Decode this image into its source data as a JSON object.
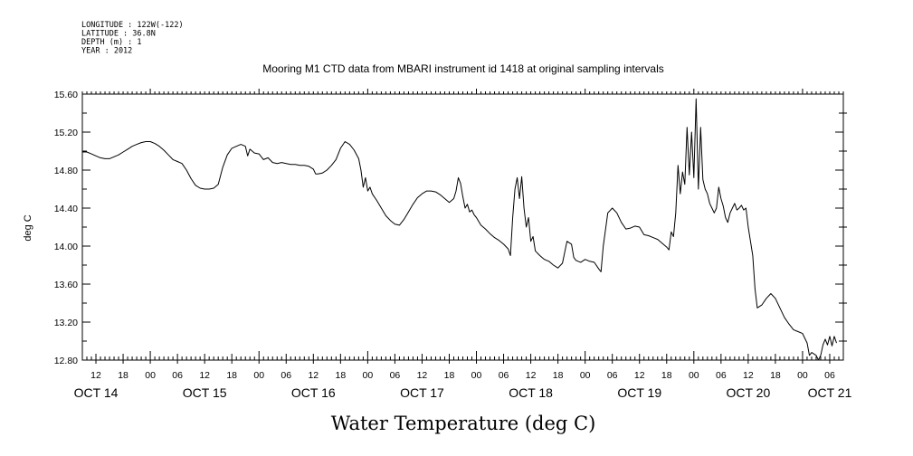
{
  "header": {
    "meta_lines": [
      "LONGITUDE : 122W(-122)",
      "LATITUDE : 36.8N",
      "DEPTH (m) : 1",
      "YEAR : 2012"
    ]
  },
  "chart_data": {
    "type": "line",
    "title": "Mooring M1 CTD data from MBARI instrument id 1418 at original sampling intervals",
    "xlabel": "Water Temperature (deg C)",
    "ylabel": "deg C",
    "ylim": [
      12.8,
      15.6
    ],
    "yticks": [
      "12.80",
      "13.20",
      "13.60",
      "14.00",
      "14.40",
      "14.80",
      "15.20",
      "15.60"
    ],
    "xlim": [
      -15,
      153
    ],
    "x_unit": "hours since OCT 14 00:00",
    "hour_ticks": [
      {
        "x": -12,
        "label": "12"
      },
      {
        "x": -6,
        "label": "18"
      },
      {
        "x": 0,
        "label": "00"
      },
      {
        "x": 6,
        "label": "06"
      },
      {
        "x": 12,
        "label": "12"
      },
      {
        "x": 18,
        "label": "18"
      },
      {
        "x": 24,
        "label": "00"
      },
      {
        "x": 30,
        "label": "06"
      },
      {
        "x": 36,
        "label": "12"
      },
      {
        "x": 42,
        "label": "18"
      },
      {
        "x": 48,
        "label": "00"
      },
      {
        "x": 54,
        "label": "06"
      },
      {
        "x": 60,
        "label": "12"
      },
      {
        "x": 66,
        "label": "18"
      },
      {
        "x": 72,
        "label": "00"
      },
      {
        "x": 78,
        "label": "06"
      },
      {
        "x": 84,
        "label": "12"
      },
      {
        "x": 90,
        "label": "18"
      },
      {
        "x": 96,
        "label": "00"
      },
      {
        "x": 102,
        "label": "06"
      },
      {
        "x": 108,
        "label": "12"
      },
      {
        "x": 114,
        "label": "18"
      },
      {
        "x": 120,
        "label": "00"
      },
      {
        "x": 126,
        "label": "06"
      },
      {
        "x": 132,
        "label": "12"
      },
      {
        "x": 138,
        "label": "18"
      },
      {
        "x": 144,
        "label": "00"
      },
      {
        "x": 150,
        "label": "06"
      }
    ],
    "day_labels": [
      {
        "x": -12,
        "label": "OCT 14"
      },
      {
        "x": 12,
        "label": "OCT 15"
      },
      {
        "x": 36,
        "label": "OCT 16"
      },
      {
        "x": 60,
        "label": "OCT 17"
      },
      {
        "x": 84,
        "label": "OCT 18"
      },
      {
        "x": 108,
        "label": "OCT 19"
      },
      {
        "x": 132,
        "label": "OCT 20"
      },
      {
        "x": 150,
        "label": "OCT 21"
      }
    ],
    "series": [
      {
        "color": "#000000",
        "points": [
          [
            -15,
            14.99
          ],
          [
            -14,
            14.99
          ],
          [
            -13,
            14.97
          ],
          [
            -12,
            14.95
          ],
          [
            -11,
            14.93
          ],
          [
            -10,
            14.92
          ],
          [
            -9,
            14.92
          ],
          [
            -8,
            14.94
          ],
          [
            -7,
            14.96
          ],
          [
            -6,
            14.99
          ],
          [
            -5,
            15.02
          ],
          [
            -4,
            15.05
          ],
          [
            -3,
            15.07
          ],
          [
            -2,
            15.09
          ],
          [
            -1,
            15.1
          ],
          [
            0,
            15.1
          ],
          [
            1,
            15.08
          ],
          [
            2,
            15.05
          ],
          [
            3,
            15.01
          ],
          [
            4,
            14.96
          ],
          [
            5,
            14.91
          ],
          [
            6,
            14.89
          ],
          [
            7,
            14.87
          ],
          [
            8,
            14.8
          ],
          [
            9,
            14.71
          ],
          [
            10,
            14.64
          ],
          [
            11,
            14.61
          ],
          [
            12,
            14.6
          ],
          [
            13,
            14.6
          ],
          [
            14,
            14.61
          ],
          [
            15,
            14.65
          ],
          [
            16,
            14.83
          ],
          [
            17,
            14.96
          ],
          [
            18,
            15.03
          ],
          [
            19,
            15.05
          ],
          [
            20,
            15.07
          ],
          [
            21,
            15.05
          ],
          [
            21.5,
            14.95
          ],
          [
            22,
            15.02
          ],
          [
            23,
            14.98
          ],
          [
            24,
            14.97
          ],
          [
            25,
            14.91
          ],
          [
            26,
            14.93
          ],
          [
            27,
            14.88
          ],
          [
            28,
            14.87
          ],
          [
            29,
            14.88
          ],
          [
            30,
            14.87
          ],
          [
            31,
            14.86
          ],
          [
            32,
            14.86
          ],
          [
            33,
            14.85
          ],
          [
            34,
            14.85
          ],
          [
            35,
            14.84
          ],
          [
            36,
            14.81
          ],
          [
            36.5,
            14.76
          ],
          [
            37,
            14.76
          ],
          [
            38,
            14.77
          ],
          [
            39,
            14.8
          ],
          [
            40,
            14.85
          ],
          [
            41,
            14.91
          ],
          [
            42,
            15.03
          ],
          [
            43,
            15.1
          ],
          [
            44,
            15.07
          ],
          [
            45,
            15.01
          ],
          [
            46,
            14.92
          ],
          [
            46.5,
            14.8
          ],
          [
            47,
            14.62
          ],
          [
            47.5,
            14.72
          ],
          [
            48,
            14.58
          ],
          [
            48.5,
            14.62
          ],
          [
            49,
            14.55
          ],
          [
            50,
            14.48
          ],
          [
            51,
            14.4
          ],
          [
            52,
            14.32
          ],
          [
            53,
            14.27
          ],
          [
            54,
            14.23
          ],
          [
            55,
            14.22
          ],
          [
            56,
            14.28
          ],
          [
            57,
            14.36
          ],
          [
            58,
            14.44
          ],
          [
            59,
            14.51
          ],
          [
            60,
            14.55
          ],
          [
            61,
            14.58
          ],
          [
            62,
            14.58
          ],
          [
            63,
            14.57
          ],
          [
            64,
            14.54
          ],
          [
            65,
            14.5
          ],
          [
            66,
            14.46
          ],
          [
            67,
            14.5
          ],
          [
            67.5,
            14.58
          ],
          [
            68,
            14.72
          ],
          [
            68.5,
            14.66
          ],
          [
            69,
            14.52
          ],
          [
            69.5,
            14.4
          ],
          [
            70,
            14.44
          ],
          [
            70.5,
            14.36
          ],
          [
            71,
            14.38
          ],
          [
            71.5,
            14.33
          ],
          [
            72,
            14.3
          ],
          [
            73,
            14.22
          ],
          [
            74,
            14.18
          ],
          [
            75,
            14.13
          ],
          [
            76,
            14.09
          ],
          [
            77,
            14.06
          ],
          [
            78,
            14.02
          ],
          [
            79,
            13.97
          ],
          [
            79.5,
            13.9
          ],
          [
            80,
            14.3
          ],
          [
            80.5,
            14.6
          ],
          [
            81,
            14.72
          ],
          [
            81.5,
            14.5
          ],
          [
            82,
            14.73
          ],
          [
            82.5,
            14.4
          ],
          [
            83,
            14.2
          ],
          [
            83.5,
            14.3
          ],
          [
            84,
            14.05
          ],
          [
            84.5,
            14.1
          ],
          [
            85,
            13.95
          ],
          [
            86,
            13.9
          ],
          [
            87,
            13.86
          ],
          [
            88,
            13.84
          ],
          [
            89,
            13.8
          ],
          [
            90,
            13.77
          ],
          [
            91,
            13.82
          ],
          [
            92,
            14.05
          ],
          [
            93,
            14.02
          ],
          [
            93.5,
            13.88
          ],
          [
            94,
            13.85
          ],
          [
            95,
            13.83
          ],
          [
            96,
            13.86
          ],
          [
            97,
            13.84
          ],
          [
            98,
            13.83
          ],
          [
            99,
            13.76
          ],
          [
            99.5,
            13.73
          ],
          [
            100,
            14.0
          ],
          [
            101,
            14.35
          ],
          [
            102,
            14.4
          ],
          [
            103,
            14.35
          ],
          [
            104,
            14.25
          ],
          [
            105,
            14.18
          ],
          [
            106,
            14.19
          ],
          [
            107,
            14.21
          ],
          [
            108,
            14.2
          ],
          [
            109,
            14.12
          ],
          [
            110,
            14.11
          ],
          [
            111,
            14.09
          ],
          [
            112,
            14.07
          ],
          [
            113,
            14.03
          ],
          [
            114,
            13.99
          ],
          [
            114.5,
            13.96
          ],
          [
            115,
            14.15
          ],
          [
            115.5,
            14.1
          ],
          [
            116,
            14.35
          ],
          [
            116.5,
            14.85
          ],
          [
            117,
            14.55
          ],
          [
            117.5,
            14.78
          ],
          [
            118,
            14.65
          ],
          [
            118.5,
            15.25
          ],
          [
            119,
            14.75
          ],
          [
            119.5,
            15.2
          ],
          [
            120,
            14.72
          ],
          [
            120.5,
            15.55
          ],
          [
            121,
            14.6
          ],
          [
            121.5,
            15.25
          ],
          [
            122,
            14.7
          ],
          [
            122.5,
            14.6
          ],
          [
            123,
            14.55
          ],
          [
            123.5,
            14.45
          ],
          [
            124,
            14.4
          ],
          [
            124.5,
            14.35
          ],
          [
            125,
            14.4
          ],
          [
            125.5,
            14.62
          ],
          [
            126,
            14.5
          ],
          [
            126.5,
            14.42
          ],
          [
            127,
            14.3
          ],
          [
            127.5,
            14.25
          ],
          [
            128,
            14.35
          ],
          [
            128.5,
            14.4
          ],
          [
            129,
            14.45
          ],
          [
            129.5,
            14.38
          ],
          [
            130,
            14.4
          ],
          [
            130.5,
            14.43
          ],
          [
            131,
            14.38
          ],
          [
            131.5,
            14.4
          ],
          [
            132,
            14.2
          ],
          [
            132.5,
            14.05
          ],
          [
            133,
            13.9
          ],
          [
            133.5,
            13.55
          ],
          [
            134,
            13.35
          ],
          [
            135,
            13.38
          ],
          [
            136,
            13.45
          ],
          [
            137,
            13.5
          ],
          [
            138,
            13.45
          ],
          [
            139,
            13.35
          ],
          [
            140,
            13.25
          ],
          [
            141,
            13.18
          ],
          [
            142,
            13.12
          ],
          [
            143,
            13.1
          ],
          [
            144,
            13.08
          ],
          [
            145,
            12.98
          ],
          [
            145.5,
            12.85
          ],
          [
            146,
            12.88
          ],
          [
            147,
            12.85
          ],
          [
            147.5,
            12.8
          ],
          [
            148,
            12.85
          ],
          [
            148.5,
            12.96
          ],
          [
            149,
            13.02
          ],
          [
            149.5,
            12.96
          ],
          [
            150,
            13.05
          ],
          [
            150.5,
            12.95
          ],
          [
            151,
            13.05
          ],
          [
            151.5,
            12.98
          ]
        ]
      }
    ]
  }
}
